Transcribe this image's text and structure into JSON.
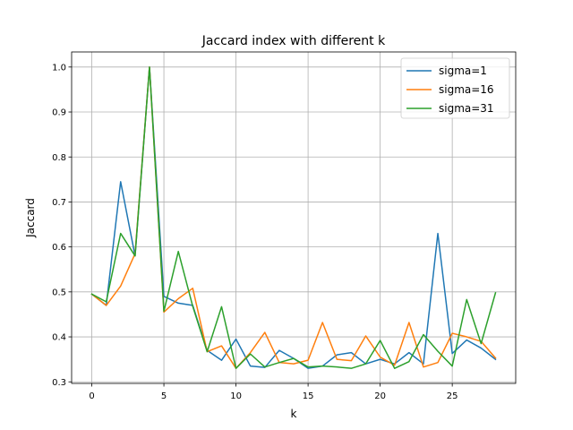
{
  "chart_data": {
    "type": "line",
    "title": "Jaccard index with different k",
    "xlabel": "k",
    "ylabel": "Jaccard",
    "xlim": [
      -1.4,
      29.4
    ],
    "ylim": [
      0.2965,
      1.0335
    ],
    "xticks": [
      0,
      5,
      10,
      15,
      20,
      25
    ],
    "yticks": [
      0.3,
      0.4,
      0.5,
      0.6,
      0.7,
      0.8,
      0.9,
      1.0
    ],
    "ytick_labels": [
      "0.3",
      "0.4",
      "0.5",
      "0.6",
      "0.7",
      "0.8",
      "0.9",
      "1.0"
    ],
    "grid": true,
    "legend_position": "top-right",
    "x": [
      0,
      1,
      2,
      3,
      4,
      5,
      6,
      7,
      8,
      9,
      10,
      11,
      12,
      13,
      14,
      15,
      16,
      17,
      18,
      19,
      20,
      21,
      22,
      23,
      24,
      25,
      26,
      27,
      28
    ],
    "series": [
      {
        "name": "sigma=1",
        "color": "#1f77b4",
        "values": [
          0.495,
          0.47,
          0.745,
          0.58,
          1.0,
          0.49,
          0.475,
          0.47,
          0.37,
          0.348,
          0.395,
          0.335,
          0.332,
          0.37,
          0.352,
          0.33,
          0.335,
          0.36,
          0.365,
          0.34,
          0.35,
          0.34,
          0.365,
          0.34,
          0.63,
          0.363,
          0.393,
          0.375,
          0.35
        ]
      },
      {
        "name": "sigma=16",
        "color": "#ff7f0e",
        "values": [
          0.495,
          0.47,
          0.513,
          0.585,
          1.0,
          0.455,
          0.485,
          0.508,
          0.367,
          0.38,
          0.33,
          0.365,
          0.41,
          0.343,
          0.34,
          0.348,
          0.432,
          0.35,
          0.347,
          0.402,
          0.355,
          0.337,
          0.432,
          0.333,
          0.343,
          0.408,
          0.4,
          0.39,
          0.353
        ]
      },
      {
        "name": "sigma=31",
        "color": "#2ca02c",
        "values": [
          0.495,
          0.478,
          0.63,
          0.58,
          1.0,
          0.457,
          0.59,
          0.468,
          0.367,
          0.467,
          0.33,
          0.362,
          0.333,
          0.343,
          0.352,
          0.333,
          0.335,
          0.333,
          0.33,
          0.34,
          0.392,
          0.33,
          0.345,
          0.405,
          0.368,
          0.335,
          0.483,
          0.385,
          0.498
        ]
      }
    ]
  }
}
